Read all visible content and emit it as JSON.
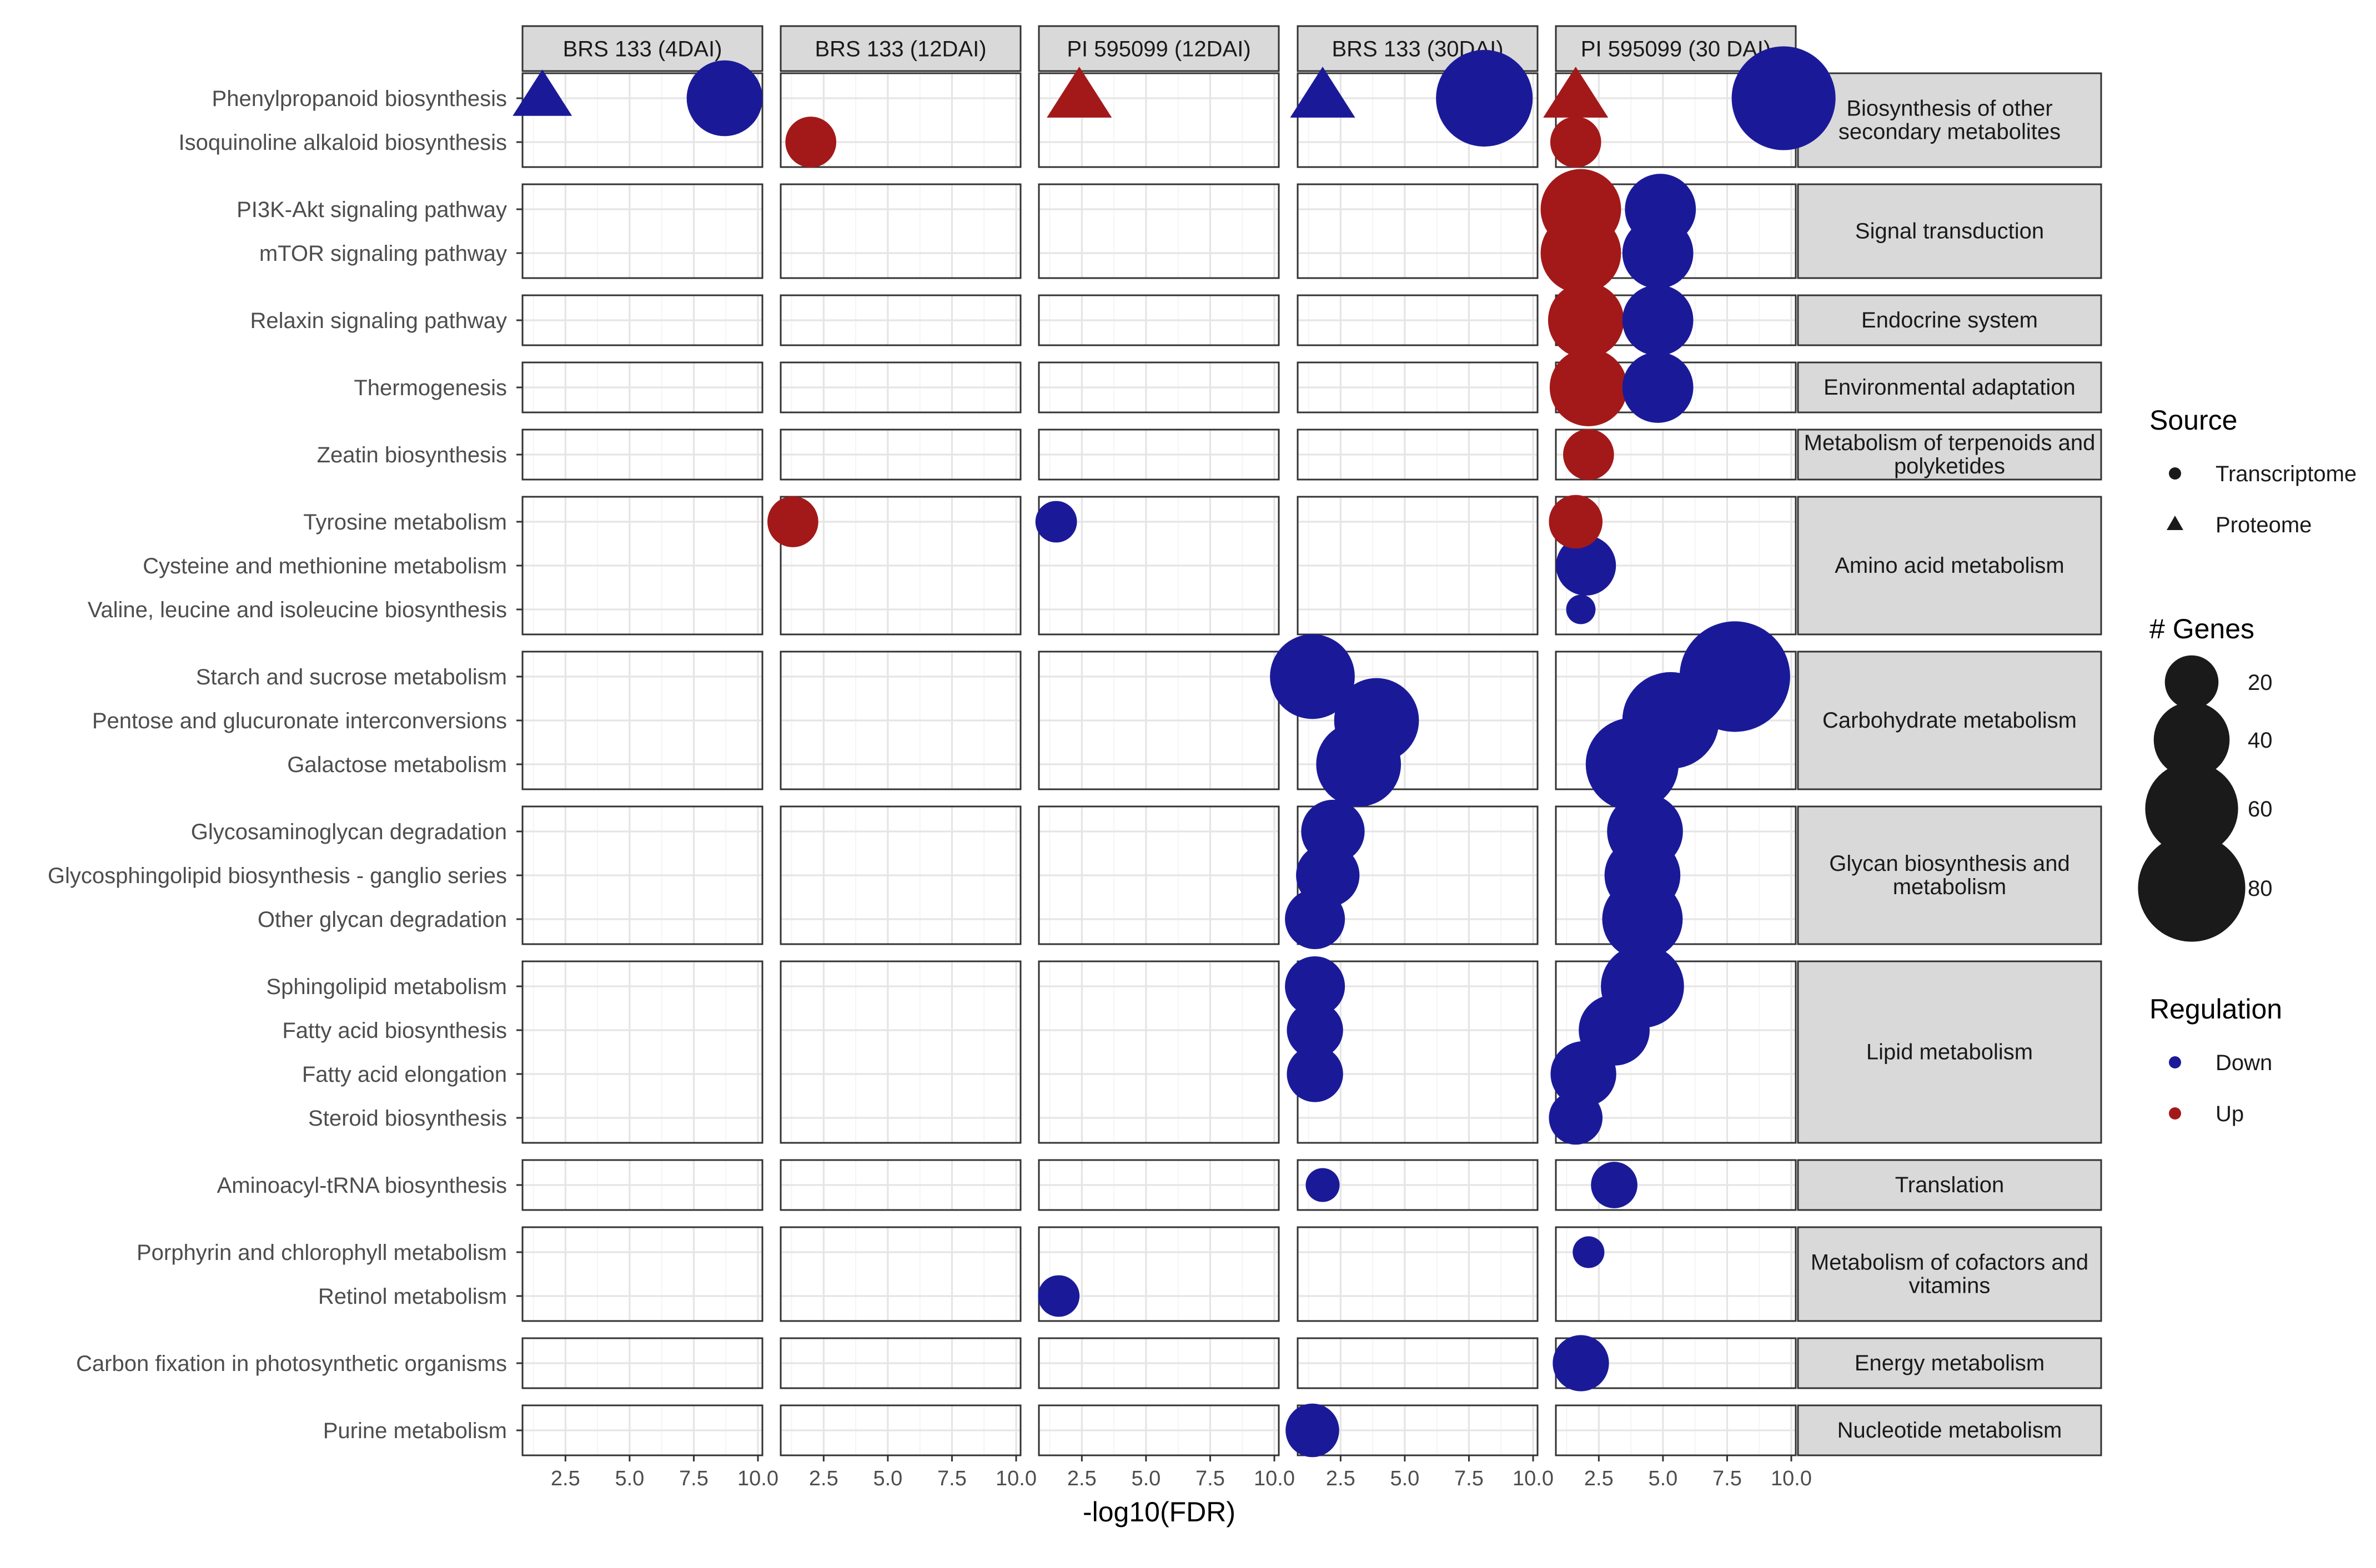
{
  "chart_data": {
    "type": "scatter",
    "xlabel": "-log10(FDR)",
    "xlim": [
      1.0,
      10.0
    ],
    "xticks": [
      2.5,
      5.0,
      7.5,
      10.0
    ],
    "xtick_labels": [
      "2.5",
      "5.0",
      "7.5",
      "10.0"
    ],
    "facets": [
      "BRS 133 (4DAI)",
      "BRS 133 (12DAI)",
      "PI 595099 (12DAI)",
      "BRS 133 (30DAI)",
      "PI 595099 (30 DAI)"
    ],
    "groups": [
      {
        "name": "Biosynthesis of other secondary metabolites",
        "lines": [
          "Biosynthesis of other",
          "secondary metabolites"
        ],
        "rows": [
          "Phenylpropanoid biosynthesis",
          "Isoquinoline alkaloid biosynthesis"
        ]
      },
      {
        "name": "Signal transduction",
        "lines": [
          "Signal transduction"
        ],
        "rows": [
          "PI3K-Akt signaling pathway",
          "mTOR signaling pathway"
        ]
      },
      {
        "name": "Endocrine system",
        "lines": [
          "Endocrine system"
        ],
        "rows": [
          "Relaxin signaling pathway"
        ]
      },
      {
        "name": "Environmental adaptation",
        "lines": [
          "Environmental adaptation"
        ],
        "rows": [
          "Thermogenesis"
        ]
      },
      {
        "name": "Metabolism of terpenoids and polyketides",
        "lines": [
          "Metabolism of terpenoids and",
          "polyketides"
        ],
        "rows": [
          "Zeatin biosynthesis"
        ]
      },
      {
        "name": "Amino acid metabolism",
        "lines": [
          "Amino acid metabolism"
        ],
        "rows": [
          "Tyrosine metabolism",
          "Cysteine and methionine metabolism",
          "Valine, leucine and isoleucine biosynthesis"
        ]
      },
      {
        "name": "Carbohydrate metabolism",
        "lines": [
          "Carbohydrate metabolism"
        ],
        "rows": [
          "Starch and sucrose metabolism",
          "Pentose and glucuronate interconversions",
          "Galactose metabolism"
        ]
      },
      {
        "name": "Glycan biosynthesis and metabolism",
        "lines": [
          "Glycan biosynthesis and",
          "metabolism"
        ],
        "rows": [
          "Glycosaminoglycan degradation",
          "Glycosphingolipid biosynthesis - ganglio series",
          "Other glycan degradation"
        ]
      },
      {
        "name": "Lipid metabolism",
        "lines": [
          "Lipid metabolism"
        ],
        "rows": [
          "Sphingolipid metabolism",
          "Fatty acid biosynthesis",
          "Fatty acid elongation",
          "Steroid biosynthesis"
        ]
      },
      {
        "name": "Translation",
        "lines": [
          "Translation"
        ],
        "rows": [
          "Aminoacyl-tRNA biosynthesis"
        ]
      },
      {
        "name": "Metabolism of cofactors and vitamins",
        "lines": [
          "Metabolism of cofactors and",
          "vitamins"
        ],
        "rows": [
          "Porphyrin and chlorophyll metabolism",
          "Retinol metabolism"
        ]
      },
      {
        "name": "Energy metabolism",
        "lines": [
          "Energy metabolism"
        ],
        "rows": [
          "Carbon fixation in photosynthetic organisms"
        ]
      },
      {
        "name": "Nucleotide metabolism",
        "lines": [
          "Nucleotide metabolism"
        ],
        "rows": [
          "Purine metabolism"
        ]
      }
    ],
    "points": [
      {
        "facet": 0,
        "pathway": "Phenylpropanoid biosynthesis",
        "x": 1.6,
        "genes": 25,
        "source": "Proteome",
        "regulation": "Down"
      },
      {
        "facet": 0,
        "pathway": "Phenylpropanoid biosynthesis",
        "x": 8.7,
        "genes": 40,
        "source": "Transcriptome",
        "regulation": "Down"
      },
      {
        "facet": 1,
        "pathway": "Isoquinoline alkaloid biosynthesis",
        "x": 2.0,
        "genes": 18,
        "source": "Transcriptome",
        "regulation": "Up"
      },
      {
        "facet": 1,
        "pathway": "Tyrosine metabolism",
        "x": 1.3,
        "genes": 18,
        "source": "Transcriptome",
        "regulation": "Up"
      },
      {
        "facet": 2,
        "pathway": "Phenylpropanoid biosynthesis",
        "x": 2.4,
        "genes": 30,
        "source": "Proteome",
        "regulation": "Up"
      },
      {
        "facet": 2,
        "pathway": "Tyrosine metabolism",
        "x": 1.5,
        "genes": 12,
        "source": "Transcriptome",
        "regulation": "Down"
      },
      {
        "facet": 2,
        "pathway": "Retinol metabolism",
        "x": 1.6,
        "genes": 12,
        "source": "Transcriptome",
        "regulation": "Down"
      },
      {
        "facet": 3,
        "pathway": "Phenylpropanoid biosynthesis",
        "x": 1.8,
        "genes": 30,
        "source": "Proteome",
        "regulation": "Down"
      },
      {
        "facet": 3,
        "pathway": "Phenylpropanoid biosynthesis",
        "x": 8.1,
        "genes": 65,
        "source": "Transcriptome",
        "regulation": "Down"
      },
      {
        "facet": 3,
        "pathway": "Starch and sucrose metabolism",
        "x": 1.4,
        "genes": 50,
        "source": "Transcriptome",
        "regulation": "Down"
      },
      {
        "facet": 3,
        "pathway": "Pentose and glucuronate interconversions",
        "x": 3.9,
        "genes": 50,
        "source": "Transcriptome",
        "regulation": "Down"
      },
      {
        "facet": 3,
        "pathway": "Galactose metabolism",
        "x": 3.2,
        "genes": 50,
        "source": "Transcriptome",
        "regulation": "Down"
      },
      {
        "facet": 3,
        "pathway": "Glycosaminoglycan degradation",
        "x": 2.2,
        "genes": 28,
        "source": "Transcriptome",
        "regulation": "Down"
      },
      {
        "facet": 3,
        "pathway": "Glycosphingolipid biosynthesis - ganglio series",
        "x": 2.0,
        "genes": 28,
        "source": "Transcriptome",
        "regulation": "Down"
      },
      {
        "facet": 3,
        "pathway": "Other glycan degradation",
        "x": 1.5,
        "genes": 25,
        "source": "Transcriptome",
        "regulation": "Down"
      },
      {
        "facet": 3,
        "pathway": "Sphingolipid metabolism",
        "x": 1.5,
        "genes": 25,
        "source": "Transcriptome",
        "regulation": "Down"
      },
      {
        "facet": 3,
        "pathway": "Fatty acid biosynthesis",
        "x": 1.5,
        "genes": 22,
        "source": "Transcriptome",
        "regulation": "Down"
      },
      {
        "facet": 3,
        "pathway": "Fatty acid elongation",
        "x": 1.5,
        "genes": 22,
        "source": "Transcriptome",
        "regulation": "Down"
      },
      {
        "facet": 3,
        "pathway": "Aminoacyl-tRNA biosynthesis",
        "x": 1.8,
        "genes": 8,
        "source": "Transcriptome",
        "regulation": "Down"
      },
      {
        "facet": 3,
        "pathway": "Purine metabolism",
        "x": 1.4,
        "genes": 20,
        "source": "Transcriptome",
        "regulation": "Down"
      },
      {
        "facet": 4,
        "pathway": "Phenylpropanoid biosynthesis",
        "x": 1.6,
        "genes": 30,
        "source": "Proteome",
        "regulation": "Up"
      },
      {
        "facet": 4,
        "pathway": "Phenylpropanoid biosynthesis",
        "x": 9.7,
        "genes": 75,
        "source": "Transcriptome",
        "regulation": "Down"
      },
      {
        "facet": 4,
        "pathway": "Isoquinoline alkaloid biosynthesis",
        "x": 1.6,
        "genes": 18,
        "source": "Transcriptome",
        "regulation": "Up"
      },
      {
        "facet": 4,
        "pathway": "PI3K-Akt signaling pathway",
        "x": 1.8,
        "genes": 45,
        "source": "Transcriptome",
        "regulation": "Up"
      },
      {
        "facet": 4,
        "pathway": "PI3K-Akt signaling pathway",
        "x": 4.9,
        "genes": 35,
        "source": "Transcriptome",
        "regulation": "Down"
      },
      {
        "facet": 4,
        "pathway": "mTOR signaling pathway",
        "x": 1.8,
        "genes": 45,
        "source": "Transcriptome",
        "regulation": "Up"
      },
      {
        "facet": 4,
        "pathway": "mTOR signaling pathway",
        "x": 4.8,
        "genes": 35,
        "source": "Transcriptome",
        "regulation": "Down"
      },
      {
        "facet": 4,
        "pathway": "Relaxin signaling pathway",
        "x": 2.0,
        "genes": 40,
        "source": "Transcriptome",
        "regulation": "Up"
      },
      {
        "facet": 4,
        "pathway": "Relaxin signaling pathway",
        "x": 2.0,
        "genes": 10,
        "source": "Proteome",
        "regulation": "Up"
      },
      {
        "facet": 4,
        "pathway": "Relaxin signaling pathway",
        "x": 4.8,
        "genes": 35,
        "source": "Transcriptome",
        "regulation": "Down"
      },
      {
        "facet": 4,
        "pathway": "Thermogenesis",
        "x": 2.1,
        "genes": 42,
        "source": "Transcriptome",
        "regulation": "Up"
      },
      {
        "facet": 4,
        "pathway": "Thermogenesis",
        "x": 1.8,
        "genes": 8,
        "source": "Proteome",
        "regulation": "Up"
      },
      {
        "facet": 4,
        "pathway": "Thermogenesis",
        "x": 4.8,
        "genes": 35,
        "source": "Transcriptome",
        "regulation": "Down"
      },
      {
        "facet": 4,
        "pathway": "Zeatin biosynthesis",
        "x": 2.1,
        "genes": 18,
        "source": "Transcriptome",
        "regulation": "Up"
      },
      {
        "facet": 4,
        "pathway": "Tyrosine metabolism",
        "x": 1.6,
        "genes": 20,
        "source": "Transcriptome",
        "regulation": "Up"
      },
      {
        "facet": 4,
        "pathway": "Cysteine and methionine metabolism",
        "x": 2.0,
        "genes": 25,
        "source": "Transcriptome",
        "regulation": "Down"
      },
      {
        "facet": 4,
        "pathway": "Valine, leucine and isoleucine biosynthesis",
        "x": 1.8,
        "genes": 6,
        "source": "Transcriptome",
        "regulation": "Down"
      },
      {
        "facet": 4,
        "pathway": "Starch and sucrose metabolism",
        "x": 7.8,
        "genes": 85,
        "source": "Transcriptome",
        "regulation": "Down"
      },
      {
        "facet": 4,
        "pathway": "Pentose and glucuronate interconversions",
        "x": 5.3,
        "genes": 65,
        "source": "Transcriptome",
        "regulation": "Down"
      },
      {
        "facet": 4,
        "pathway": "Galactose metabolism",
        "x": 3.8,
        "genes": 60,
        "source": "Transcriptome",
        "regulation": "Down"
      },
      {
        "facet": 4,
        "pathway": "Glycosaminoglycan degradation",
        "x": 4.3,
        "genes": 40,
        "source": "Transcriptome",
        "regulation": "Down"
      },
      {
        "facet": 4,
        "pathway": "Glycosphingolipid biosynthesis - ganglio series",
        "x": 4.2,
        "genes": 40,
        "source": "Transcriptome",
        "regulation": "Down"
      },
      {
        "facet": 4,
        "pathway": "Other glycan degradation",
        "x": 4.2,
        "genes": 45,
        "source": "Transcriptome",
        "regulation": "Down"
      },
      {
        "facet": 4,
        "pathway": "Sphingolipid metabolism",
        "x": 4.2,
        "genes": 48,
        "source": "Transcriptome",
        "regulation": "Down"
      },
      {
        "facet": 4,
        "pathway": "Fatty acid biosynthesis",
        "x": 3.1,
        "genes": 35,
        "source": "Transcriptome",
        "regulation": "Down"
      },
      {
        "facet": 4,
        "pathway": "Fatty acid elongation",
        "x": 1.9,
        "genes": 30,
        "source": "Transcriptome",
        "regulation": "Down"
      },
      {
        "facet": 4,
        "pathway": "Steroid biosynthesis",
        "x": 1.6,
        "genes": 20,
        "source": "Transcriptome",
        "regulation": "Down"
      },
      {
        "facet": 4,
        "pathway": "Aminoacyl-tRNA biosynthesis",
        "x": 3.1,
        "genes": 15,
        "source": "Transcriptome",
        "regulation": "Down"
      },
      {
        "facet": 4,
        "pathway": "Porphyrin and chlorophyll metabolism",
        "x": 2.1,
        "genes": 7,
        "source": "Transcriptome",
        "regulation": "Down"
      },
      {
        "facet": 4,
        "pathway": "Carbon fixation in photosynthetic organisms",
        "x": 1.8,
        "genes": 22,
        "source": "Transcriptome",
        "regulation": "Down"
      }
    ],
    "legend": {
      "source": {
        "title": "Source",
        "items": [
          "Transcriptome",
          "Proteome"
        ]
      },
      "genes": {
        "title": "# Genes",
        "items": [
          20,
          40,
          60,
          80
        ],
        "labels": [
          "20",
          "40",
          "60",
          "80"
        ]
      },
      "regulation": {
        "title": "Regulation",
        "items": [
          "Down",
          "Up"
        ]
      }
    },
    "colors": {
      "Down": "#1a1a99",
      "Up": "#a31919",
      "legend_fill": "#1a1a1a"
    },
    "legend_position": "right"
  }
}
